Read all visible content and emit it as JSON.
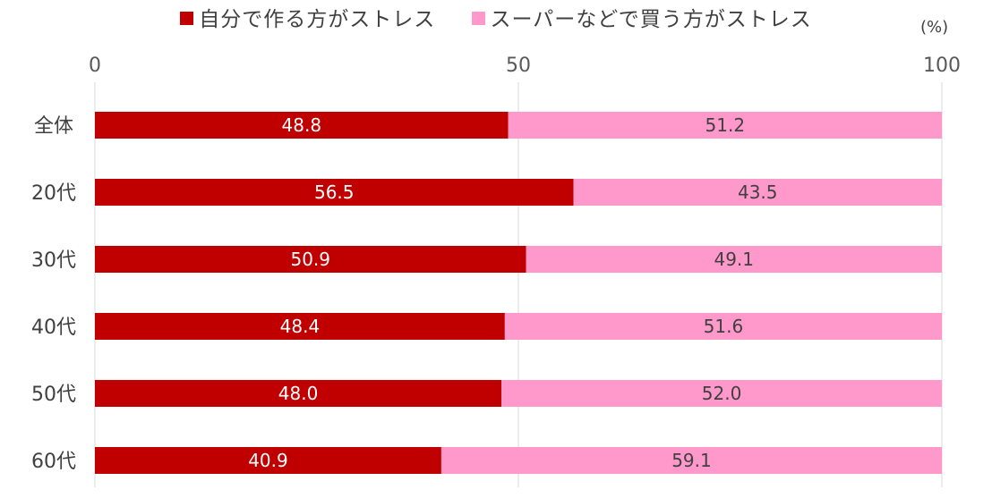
{
  "chart_data": {
    "type": "bar",
    "orientation": "horizontal",
    "stacked": true,
    "unit_label": "(%)",
    "xlim": [
      0,
      100
    ],
    "xticks": [
      "0",
      "50",
      "100"
    ],
    "categories": [
      "全体",
      "20代",
      "30代",
      "40代",
      "50代",
      "60代"
    ],
    "series": [
      {
        "name": "自分で作る方がストレス",
        "values": [
          "48.8",
          "56.5",
          "50.9",
          "48.4",
          "48.0",
          "40.9"
        ],
        "color": "#C00000",
        "label_color": "#FFFFFF"
      },
      {
        "name": "スーパーなどで買う方がストレス",
        "values": [
          "51.2",
          "43.5",
          "49.1",
          "51.6",
          "52.0",
          "59.1"
        ],
        "color": "#FF99CC",
        "label_color": "#404040"
      }
    ],
    "legend_position": "top",
    "grid": "vertical",
    "grid_color": "#D9D9D9"
  }
}
